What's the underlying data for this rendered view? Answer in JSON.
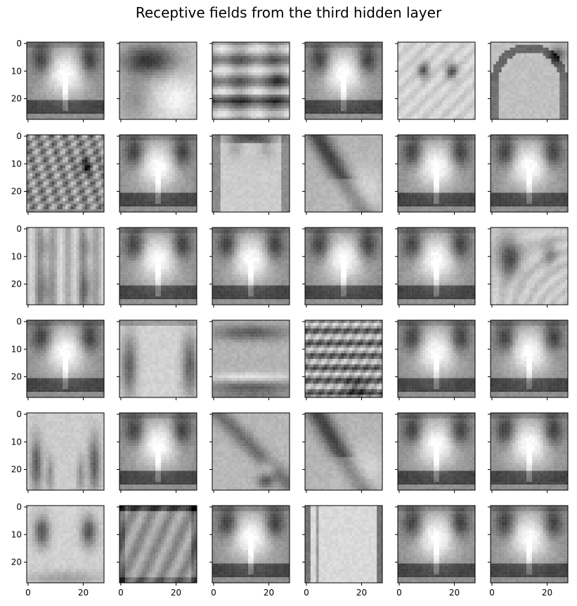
{
  "chart_data": {
    "type": "heatmap",
    "title": "Receptive fields from the third hidden layer",
    "grid": {
      "rows": 6,
      "cols": 6
    },
    "image_size": [
      28,
      28
    ],
    "colormap": "gray",
    "shared_axes": true,
    "xticks": [
      0,
      20
    ],
    "yticks": [
      0,
      10,
      20
    ],
    "xtick_labels": [
      "0",
      "20"
    ],
    "ytick_labels": [
      "0",
      "10",
      "20"
    ],
    "panels": [
      "dominant",
      "blob-upper-left",
      "horizontal-stripes",
      "dominant",
      "faint-dots",
      "arch",
      "noisy",
      "dominant",
      "arch-inverted",
      "diagonal",
      "dominant",
      "dominant",
      "vertical-pillars",
      "dominant",
      "dominant",
      "dominant",
      "dominant",
      "blob-left",
      "dominant",
      "vertical-sides",
      "horizontal-bands",
      "noisy-bands",
      "dominant",
      "dominant",
      "arch-pillars",
      "dominant",
      "diagonal-lower",
      "diagonal",
      "dominant",
      "dominant",
      "side-blobs",
      "frame",
      "dominant",
      "vertical-lines",
      "dominant",
      "dominant"
    ]
  }
}
